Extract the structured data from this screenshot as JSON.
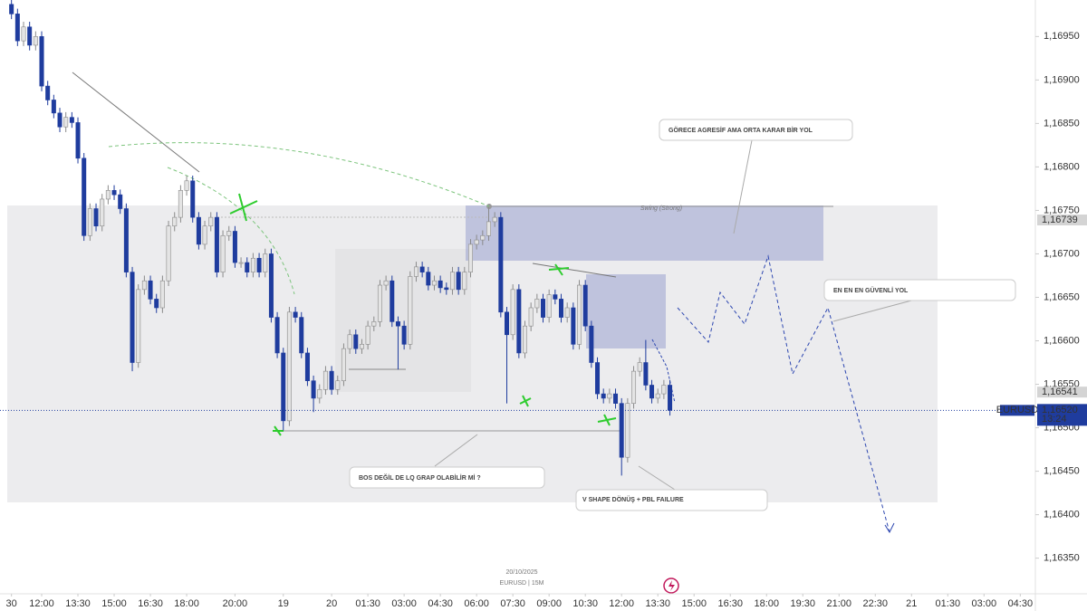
{
  "chart_data": {
    "type": "candlestick",
    "symbol": "EURUSD",
    "interval_label": "EURUSD | 15M",
    "date_label": "20/10/2025",
    "countdown": "13:24",
    "up_color": "#e4e4e4",
    "down_color": "#1f3c9e",
    "open": [
      1.16987,
      1.16976,
      1.16945,
      1.16961,
      1.1694,
      1.1695,
      1.16893,
      1.16877,
      1.16862,
      1.16846,
      1.16857,
      1.16851,
      1.1681,
      1.16721,
      1.16752,
      1.16732,
      1.16763,
      1.16773,
      1.16768,
      1.16752,
      1.16679,
      1.16575,
      1.16659,
      1.16669,
      1.16648,
      1.16638,
      1.16669,
      1.16732,
      1.16742,
      1.16773,
      1.16784,
      1.16742,
      1.16711,
      1.16732,
      1.16742,
      1.16679,
      1.16721,
      1.16726,
      1.1669,
      1.1669,
      1.16679,
      1.16695,
      1.16679,
      1.167,
      1.16627,
      1.16586,
      1.16508,
      1.16633,
      1.16627,
      1.16586,
      1.16554,
      1.16534,
      1.16544,
      1.16565,
      1.16544,
      1.16554,
      1.16591,
      1.16607,
      1.16591,
      1.16596,
      1.16617,
      1.16622,
      1.16664,
      1.16669,
      1.16622,
      1.16617,
      1.16596,
      1.16674,
      1.16685,
      1.16679,
      1.16664,
      1.16669,
      1.16661,
      1.16659,
      1.16679,
      1.16659,
      1.16679,
      1.16711,
      1.16716,
      1.16721,
      1.16737,
      1.16742,
      1.16633,
      1.16607,
      1.16659,
      1.16586,
      1.16617,
      1.16638,
      1.16648,
      1.16627,
      1.16653,
      1.16648,
      1.16627,
      1.16638,
      1.16596,
      1.16664,
      1.16617,
      1.16575,
      1.16539,
      1.16534,
      1.16539,
      1.16528,
      1.16466,
      1.16528,
      1.16565,
      1.16575,
      1.16549,
      1.16534,
      1.16539,
      1.16549
    ],
    "high": [
      1.16993,
      1.16982,
      1.16967,
      1.16967,
      1.16956,
      1.16956,
      1.16899,
      1.16883,
      1.16868,
      1.16863,
      1.16863,
      1.16857,
      1.16816,
      1.16758,
      1.16758,
      1.16769,
      1.16779,
      1.16779,
      1.16774,
      1.16758,
      1.16685,
      1.16665,
      1.16675,
      1.16675,
      1.16654,
      1.16675,
      1.16738,
      1.16748,
      1.16779,
      1.1679,
      1.1679,
      1.16748,
      1.16738,
      1.16748,
      1.16748,
      1.16727,
      1.16732,
      1.16732,
      1.16696,
      1.16696,
      1.16701,
      1.16701,
      1.16706,
      1.16706,
      1.16633,
      1.16592,
      1.16639,
      1.16639,
      1.16633,
      1.16592,
      1.1656,
      1.1655,
      1.16571,
      1.16571,
      1.1656,
      1.16597,
      1.16613,
      1.16613,
      1.16602,
      1.16623,
      1.16628,
      1.1667,
      1.16675,
      1.16675,
      1.16628,
      1.16623,
      1.1668,
      1.16691,
      1.16691,
      1.16685,
      1.16675,
      1.16675,
      1.16667,
      1.16685,
      1.16685,
      1.16685,
      1.16717,
      1.16722,
      1.16727,
      1.16754,
      1.16748,
      1.16748,
      1.16639,
      1.16665,
      1.16665,
      1.16623,
      1.16644,
      1.16654,
      1.16654,
      1.16659,
      1.16659,
      1.16654,
      1.16644,
      1.16644,
      1.1667,
      1.1667,
      1.16623,
      1.16581,
      1.16545,
      1.16545,
      1.16545,
      1.16534,
      1.16534,
      1.16571,
      1.16581,
      1.16601,
      1.16555,
      1.16545,
      1.16555,
      1.16555
    ],
    "low": [
      1.1697,
      1.16939,
      1.16939,
      1.16934,
      1.16934,
      1.16887,
      1.16871,
      1.16856,
      1.1684,
      1.1684,
      1.16845,
      1.16804,
      1.16715,
      1.16715,
      1.16726,
      1.16726,
      1.16757,
      1.16762,
      1.16746,
      1.16673,
      1.16565,
      1.16569,
      1.16653,
      1.16642,
      1.16632,
      1.16632,
      1.16663,
      1.16726,
      1.16736,
      1.16767,
      1.16736,
      1.16705,
      1.16705,
      1.16726,
      1.16673,
      1.16673,
      1.16715,
      1.16684,
      1.16684,
      1.16673,
      1.16673,
      1.16673,
      1.16673,
      1.16621,
      1.1658,
      1.16497,
      1.16502,
      1.16621,
      1.1658,
      1.16548,
      1.16518,
      1.16528,
      1.16538,
      1.16538,
      1.16538,
      1.16548,
      1.16585,
      1.16585,
      1.16585,
      1.1659,
      1.16611,
      1.16616,
      1.16658,
      1.16616,
      1.16567,
      1.1659,
      1.1659,
      1.16668,
      1.16673,
      1.16658,
      1.16658,
      1.16655,
      1.16653,
      1.16653,
      1.16653,
      1.16653,
      1.16673,
      1.16705,
      1.1671,
      1.16715,
      1.16731,
      1.16627,
      1.16528,
      1.16601,
      1.1658,
      1.1658,
      1.16611,
      1.16632,
      1.16621,
      1.16621,
      1.16642,
      1.16621,
      1.16621,
      1.1659,
      1.1659,
      1.16611,
      1.16569,
      1.16533,
      1.16528,
      1.16528,
      1.16522,
      1.16445,
      1.1646,
      1.16522,
      1.16559,
      1.16543,
      1.16528,
      1.16528,
      1.16533,
      1.16514
    ],
    "close": [
      1.16976,
      1.16945,
      1.16961,
      1.1694,
      1.1695,
      1.16893,
      1.16877,
      1.16862,
      1.16846,
      1.16857,
      1.16851,
      1.1681,
      1.16721,
      1.16752,
      1.16732,
      1.16763,
      1.16773,
      1.16768,
      1.16752,
      1.16679,
      1.16575,
      1.16659,
      1.16669,
      1.16648,
      1.16638,
      1.16669,
      1.16732,
      1.16742,
      1.16773,
      1.16784,
      1.16742,
      1.16711,
      1.16732,
      1.16742,
      1.16679,
      1.16721,
      1.16726,
      1.1669,
      1.1669,
      1.16679,
      1.16695,
      1.16679,
      1.167,
      1.16627,
      1.16586,
      1.16508,
      1.16633,
      1.16627,
      1.16586,
      1.16554,
      1.16534,
      1.16544,
      1.16565,
      1.16544,
      1.16554,
      1.16591,
      1.16607,
      1.16591,
      1.16596,
      1.16617,
      1.16622,
      1.16664,
      1.16669,
      1.16622,
      1.16617,
      1.16596,
      1.16674,
      1.16685,
      1.16679,
      1.16664,
      1.16669,
      1.16661,
      1.16659,
      1.16679,
      1.16659,
      1.16679,
      1.16711,
      1.16716,
      1.16721,
      1.16737,
      1.16742,
      1.16633,
      1.16607,
      1.16659,
      1.16586,
      1.16617,
      1.16638,
      1.16648,
      1.16627,
      1.16653,
      1.16648,
      1.16627,
      1.16638,
      1.16596,
      1.16664,
      1.16617,
      1.16575,
      1.16539,
      1.16534,
      1.16539,
      1.16528,
      1.16466,
      1.16528,
      1.16565,
      1.16575,
      1.16549,
      1.16534,
      1.16539,
      1.16549,
      1.1652
    ],
    "xlim": [
      -1.9,
      169.5
    ],
    "xticks": [
      {
        "value": 0,
        "label": "30"
      },
      {
        "value": 5,
        "label": "12:00"
      },
      {
        "value": 11,
        "label": "13:30"
      },
      {
        "value": 17,
        "label": "15:00"
      },
      {
        "value": 23,
        "label": "16:30"
      },
      {
        "value": 29,
        "label": "18:00"
      },
      {
        "value": 37,
        "label": "20:00"
      },
      {
        "value": 45,
        "label": "19"
      },
      {
        "value": 53,
        "label": "20"
      },
      {
        "value": 59,
        "label": "01:30"
      },
      {
        "value": 65,
        "label": "03:00"
      },
      {
        "value": 71,
        "label": "04:30"
      },
      {
        "value": 77,
        "label": "06:00"
      },
      {
        "value": 83,
        "label": "07:30"
      },
      {
        "value": 89,
        "label": "09:00"
      },
      {
        "value": 95,
        "label": "10:30"
      },
      {
        "value": 101,
        "label": "12:00"
      },
      {
        "value": 107,
        "label": "13:30"
      },
      {
        "value": 113,
        "label": "15:00"
      },
      {
        "value": 119,
        "label": "16:30"
      },
      {
        "value": 125,
        "label": "18:00"
      },
      {
        "value": 131,
        "label": "19:30"
      },
      {
        "value": 137,
        "label": "21:00"
      },
      {
        "value": 143,
        "label": "22:30"
      },
      {
        "value": 149,
        "label": "21"
      },
      {
        "value": 155,
        "label": "01:30"
      },
      {
        "value": 161,
        "label": "03:00"
      },
      {
        "value": 167,
        "label": "04:30"
      }
    ],
    "ylim": [
      1.16309,
      1.16992
    ],
    "yticks": [
      {
        "value": 1.1635,
        "label": "1,16350"
      },
      {
        "value": 1.164,
        "label": "1,16400"
      },
      {
        "value": 1.1645,
        "label": "1,16450"
      },
      {
        "value": 1.165,
        "label": "1,16500"
      },
      {
        "value": 1.1655,
        "label": "1,16550"
      },
      {
        "value": 1.166,
        "label": "1,16600"
      },
      {
        "value": 1.1665,
        "label": "1,16650"
      },
      {
        "value": 1.167,
        "label": "1,16700"
      },
      {
        "value": 1.1675,
        "label": "1,16750"
      },
      {
        "value": 1.168,
        "label": "1,16800"
      },
      {
        "value": 1.1685,
        "label": "1,16850"
      },
      {
        "value": 1.169,
        "label": "1,16900"
      },
      {
        "value": 1.1695,
        "label": "1,16950"
      }
    ],
    "price_labels": [
      {
        "value": 1.16739,
        "label": "1,16739"
      },
      {
        "value": 1.16541,
        "label": "1,16541"
      }
    ],
    "last_price": {
      "value": 1.1652,
      "label": "1,16520"
    },
    "annotations": [
      "GÖRECE AGRESİF AMA ORTA KARAR BİR YOL",
      "EN EN EN GÜVENLİ YOL",
      "BOS DEĞİL DE LQ GRAP OLABİLİR Mİ ?",
      "V SHAPE DÖNÜŞ + PBL FAILURE",
      "Swing (Strong)"
    ]
  }
}
